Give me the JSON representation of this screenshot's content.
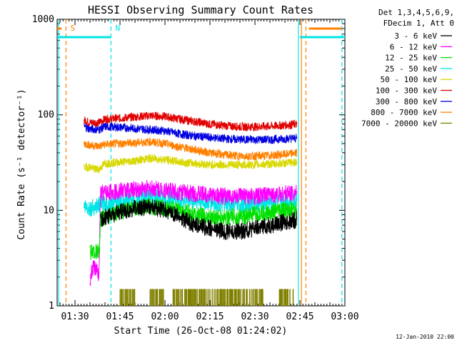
{
  "chart_data": {
    "type": "line",
    "title": "HESSI Observing Summary Count Rates",
    "xlabel": "Start Time (26-Oct-08 01:24:02)",
    "ylabel": "Count Rate (s⁻¹ detector⁻¹)",
    "y_scale": "log",
    "ylim": [
      1,
      1000
    ],
    "x_axis_is_time": true,
    "xlim": [
      "01:24:02",
      "03:00:00"
    ],
    "x_ticks": [
      "01:30",
      "01:45",
      "02:00",
      "02:15",
      "02:30",
      "02:45",
      "03:00"
    ],
    "y_ticks": [
      "1",
      "10",
      "100",
      "1000"
    ],
    "legend_header": [
      "Det 1,3,4,5,6,9,",
      "FDecim 1, Att 0"
    ],
    "legend_position": "right",
    "footer_date": "12-Jan-2010 22:00",
    "vertical_markers": [
      {
        "time": "01:24:30",
        "label": "",
        "color": "#00e5e5",
        "style": "solid"
      },
      {
        "time": "01:27:00",
        "label": "S",
        "color": "#ff8000",
        "style": "dashed"
      },
      {
        "time": "01:42:00",
        "label": "N",
        "color": "#00e5e5",
        "style": "dashed"
      },
      {
        "time": "02:44:30",
        "label": "",
        "color": "#00e5e5",
        "style": "solid"
      },
      {
        "time": "02:45:30",
        "label": "",
        "color": "#ff8000",
        "style": "solid"
      },
      {
        "time": "02:47:00",
        "label": "",
        "color": "#ff8000",
        "style": "dashed"
      },
      {
        "time": "02:59:00",
        "label": "",
        "color": "#00e5e5",
        "style": "dashed"
      }
    ],
    "flag_bars": [
      {
        "name": "S",
        "color": "#ff8000",
        "y": 800,
        "segments": [
          [
            "01:24:02",
            "01:25:30"
          ],
          [
            "02:48:00",
            "02:59:00"
          ]
        ]
      },
      {
        "name": "N",
        "color": "#00e5e5",
        "y": 650,
        "segments": [
          [
            "01:24:02",
            "01:42:00"
          ],
          [
            "02:45:00",
            "03:00:00"
          ]
        ]
      }
    ],
    "series": [
      {
        "name": "3 - 6 keV",
        "color": "#000000",
        "x": [
          "01:38:30",
          "01:40:00",
          "01:42:00",
          "01:45:00",
          "01:50:00",
          "01:55:00",
          "02:00:00",
          "02:05:00",
          "02:10:00",
          "02:15:00",
          "02:20:00",
          "02:25:00",
          "02:30:00",
          "02:35:00",
          "02:40:00",
          "02:44:00"
        ],
        "y": [
          7.5,
          8.5,
          9,
          9.5,
          10.5,
          10.8,
          10,
          8.5,
          7,
          6.5,
          6,
          6,
          6.5,
          7,
          7.5,
          8
        ]
      },
      {
        "name": "6 - 12 keV",
        "color": "#ff00ff",
        "x": [
          "01:35:00",
          "01:36:00",
          "01:37:00",
          "01:38:00",
          "01:38:30",
          "01:45:00",
          "01:50:00",
          "01:55:00",
          "02:00:00",
          "02:05:00",
          "02:10:00",
          "02:15:00",
          "02:20:00",
          "02:25:00",
          "02:30:00",
          "02:35:00",
          "02:40:00",
          "02:44:00"
        ],
        "y": [
          1.8,
          2.6,
          2.4,
          2.0,
          15,
          16,
          16.5,
          17,
          16.5,
          15.5,
          15,
          14.5,
          14,
          14,
          14,
          14.5,
          15,
          15.5
        ]
      },
      {
        "name": "12 - 25 keV",
        "color": "#00e000",
        "x": [
          "01:35:00",
          "01:36:00",
          "01:37:00",
          "01:38:00",
          "01:38:30",
          "01:42:00",
          "01:45:00",
          "01:50:00",
          "01:55:00",
          "02:00:00",
          "02:05:00",
          "02:10:00",
          "02:15:00",
          "02:20:00",
          "02:25:00",
          "02:30:00",
          "02:35:00",
          "02:40:00",
          "02:44:00"
        ],
        "y": [
          3.5,
          3.8,
          3.6,
          3.7,
          8,
          9,
          9.5,
          10.5,
          11,
          10.5,
          10,
          9,
          8.5,
          8.5,
          8.5,
          9,
          9.5,
          10,
          10
        ]
      },
      {
        "name": "25 - 50 keV",
        "color": "#00e5e5",
        "x": [
          "01:33:00",
          "01:35:00",
          "01:37:00",
          "01:38:30",
          "01:42:00",
          "01:45:00",
          "01:50:00",
          "01:55:00",
          "02:00:00",
          "02:05:00",
          "02:10:00",
          "02:15:00",
          "02:20:00",
          "02:25:00",
          "02:30:00",
          "02:35:00",
          "02:40:00",
          "02:44:00"
        ],
        "y": [
          11,
          10.5,
          11,
          11.5,
          12,
          12.5,
          13,
          14,
          13.5,
          13,
          12.5,
          12,
          11.5,
          11.5,
          11.5,
          12,
          12.5,
          12.5
        ]
      },
      {
        "name": "50 - 100 keV",
        "color": "#d8d800",
        "x": [
          "01:33:00",
          "01:35:00",
          "01:36:30",
          "01:38:00",
          "01:40:00",
          "01:45:00",
          "01:50:00",
          "01:55:00",
          "02:00:00",
          "02:05:00",
          "02:10:00",
          "02:15:00",
          "02:20:00",
          "02:25:00",
          "02:30:00",
          "02:35:00",
          "02:40:00",
          "02:44:00"
        ],
        "y": [
          28,
          28.5,
          27,
          27,
          31,
          32,
          33,
          35,
          34,
          32,
          31,
          30,
          30,
          30,
          30,
          30.5,
          31,
          32
        ]
      },
      {
        "name": "100 - 300 keV",
        "color": "#e00000",
        "x": [
          "01:33:00",
          "01:35:00",
          "01:38:00",
          "01:40:00",
          "01:45:00",
          "01:50:00",
          "01:55:00",
          "02:00:00",
          "02:05:00",
          "02:10:00",
          "02:15:00",
          "02:20:00",
          "02:25:00",
          "02:30:00",
          "02:35:00",
          "02:40:00",
          "02:44:00"
        ],
        "y": [
          88,
          83,
          83,
          90,
          92,
          95,
          98,
          96,
          90,
          85,
          80,
          77,
          75,
          75,
          76,
          78,
          80
        ]
      },
      {
        "name": "300 - 800 keV",
        "color": "#0000e0",
        "x": [
          "01:33:00",
          "01:35:00",
          "01:38:00",
          "01:40:00",
          "01:45:00",
          "01:50:00",
          "01:55:00",
          "02:00:00",
          "02:05:00",
          "02:10:00",
          "02:15:00",
          "02:20:00",
          "02:25:00",
          "02:30:00",
          "02:35:00",
          "02:40:00",
          "02:44:00"
        ],
        "y": [
          75,
          71,
          70,
          75,
          74,
          72,
          70,
          68,
          63,
          60,
          58,
          56,
          55,
          55,
          55,
          56,
          57
        ]
      },
      {
        "name": "800 - 7000 keV",
        "color": "#ff8000",
        "x": [
          "01:33:00",
          "01:35:00",
          "01:38:00",
          "01:40:00",
          "01:45:00",
          "01:50:00",
          "01:55:00",
          "02:00:00",
          "02:05:00",
          "02:10:00",
          "02:15:00",
          "02:20:00",
          "02:25:00",
          "02:30:00",
          "02:35:00",
          "02:40:00",
          "02:44:00"
        ],
        "y": [
          50,
          48,
          47,
          49,
          50,
          51,
          52,
          50,
          46,
          43,
          40,
          38,
          37,
          37,
          37.5,
          38.5,
          40
        ]
      },
      {
        "name": "7000 - 20000 keV",
        "color": "#808000",
        "x": [
          "01:45:00",
          "01:50:00",
          "01:55:00",
          "02:00:00",
          "02:02:00",
          "02:33:00",
          "02:38:00",
          "02:43:00"
        ],
        "y": [
          1.5,
          1.5,
          1.5,
          1.5,
          1.5,
          1.5,
          1.5,
          1.5
        ]
      }
    ]
  }
}
